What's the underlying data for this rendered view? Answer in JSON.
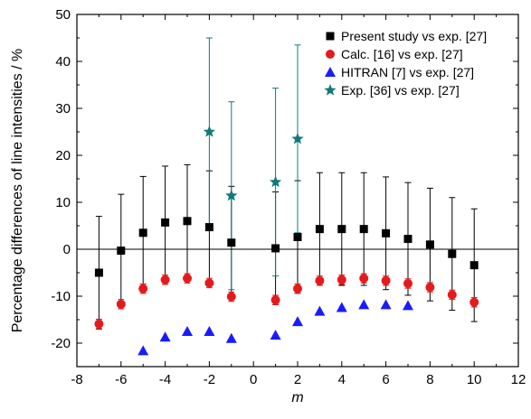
{
  "chart_data": {
    "type": "scatter",
    "xlabel": "m",
    "ylabel": "Percentage differences of line intensities / %",
    "xlim": [
      -8,
      12
    ],
    "ylim": [
      -25,
      50
    ],
    "x_ticks": [
      -8,
      -6,
      -4,
      -2,
      0,
      2,
      4,
      6,
      8,
      10,
      12
    ],
    "y_ticks": [
      -20,
      -10,
      0,
      10,
      20,
      30,
      40,
      50
    ],
    "zero_line": true,
    "grid": false,
    "legend_position": "top-right",
    "series": [
      {
        "name": "Present study vs exp. [27]",
        "marker": "square",
        "color": "#000000",
        "points": [
          {
            "x": -7,
            "y": -5.0,
            "err": 12.0
          },
          {
            "x": -6,
            "y": -0.3,
            "err": 12.0
          },
          {
            "x": -5,
            "y": 3.5,
            "err": 12.0
          },
          {
            "x": -4,
            "y": 5.7,
            "err": 12.0
          },
          {
            "x": -3,
            "y": 6.0,
            "err": 12.0
          },
          {
            "x": -2,
            "y": 4.7,
            "err": 12.0
          },
          {
            "x": -1,
            "y": 1.4,
            "err": 12.0
          },
          {
            "x": 1,
            "y": 0.2,
            "err": 12.0
          },
          {
            "x": 2,
            "y": 2.6,
            "err": 12.0
          },
          {
            "x": 3,
            "y": 4.3,
            "err": 12.0
          },
          {
            "x": 4,
            "y": 4.3,
            "err": 12.0
          },
          {
            "x": 5,
            "y": 4.3,
            "err": 12.0
          },
          {
            "x": 6,
            "y": 3.4,
            "err": 12.0
          },
          {
            "x": 7,
            "y": 2.2,
            "err": 12.0
          },
          {
            "x": 8,
            "y": 1.0,
            "err": 12.0
          },
          {
            "x": 9,
            "y": -1.0,
            "err": 12.0
          },
          {
            "x": 10,
            "y": -3.4,
            "err": 12.0
          }
        ]
      },
      {
        "name": "Calc. [16] vs exp. [27]",
        "marker": "circle",
        "color": "#e41a1c",
        "points": [
          {
            "x": -7,
            "y": -15.9,
            "err": 1.0
          },
          {
            "x": -6,
            "y": -11.7,
            "err": 1.0
          },
          {
            "x": -5,
            "y": -8.4,
            "err": 1.0
          },
          {
            "x": -4,
            "y": -6.5,
            "err": 1.0
          },
          {
            "x": -3,
            "y": -6.2,
            "err": 1.0
          },
          {
            "x": -2,
            "y": -7.2,
            "err": 1.0
          },
          {
            "x": -1,
            "y": -10.1,
            "err": 1.0
          },
          {
            "x": 1,
            "y": -10.8,
            "err": 1.0
          },
          {
            "x": 2,
            "y": -8.4,
            "err": 1.0
          },
          {
            "x": 3,
            "y": -6.7,
            "err": 1.0
          },
          {
            "x": 4,
            "y": -6.5,
            "err": 1.0
          },
          {
            "x": 5,
            "y": -6.2,
            "err": 1.0
          },
          {
            "x": 6,
            "y": -6.7,
            "err": 1.0
          },
          {
            "x": 7,
            "y": -7.3,
            "err": 1.0
          },
          {
            "x": 8,
            "y": -8.1,
            "err": 1.0
          },
          {
            "x": 9,
            "y": -9.7,
            "err": 1.0
          },
          {
            "x": 10,
            "y": -11.3,
            "err": 1.0
          }
        ]
      },
      {
        "name": "HITRAN [7] vs exp. [27]",
        "marker": "triangle",
        "color": "#1a1aff",
        "points": [
          {
            "x": -5,
            "y": -21.6
          },
          {
            "x": -4,
            "y": -18.7
          },
          {
            "x": -3,
            "y": -17.5
          },
          {
            "x": -2,
            "y": -17.5
          },
          {
            "x": -1,
            "y": -19.0
          },
          {
            "x": 1,
            "y": -18.3
          },
          {
            "x": 2,
            "y": -15.4
          },
          {
            "x": 3,
            "y": -13.2
          },
          {
            "x": 4,
            "y": -12.4
          },
          {
            "x": 5,
            "y": -11.8
          },
          {
            "x": 6,
            "y": -11.8
          },
          {
            "x": 7,
            "y": -12.0
          }
        ]
      },
      {
        "name": "Exp. [36] vs exp. [27]",
        "marker": "star",
        "color": "#0f7a7a",
        "points": [
          {
            "x": -2,
            "y": 25.0,
            "err": 20.0
          },
          {
            "x": -1,
            "y": 11.4,
            "err": 20.0
          },
          {
            "x": 1,
            "y": 14.3,
            "err": 20.0
          },
          {
            "x": 2,
            "y": 23.5,
            "err": 20.0
          }
        ]
      }
    ]
  }
}
